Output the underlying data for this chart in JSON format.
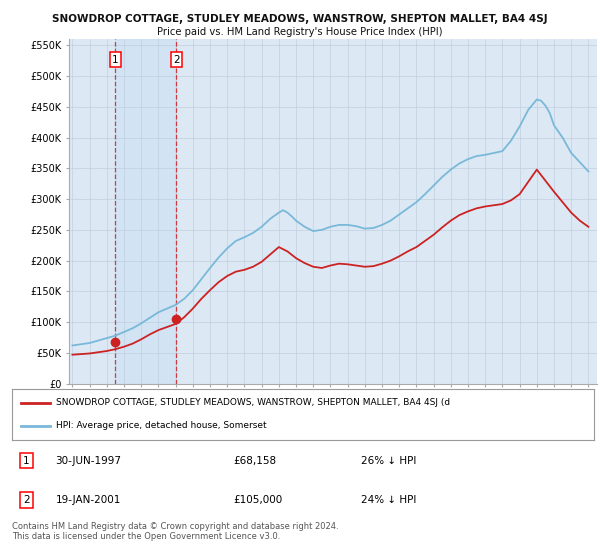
{
  "title": "SNOWDROP COTTAGE, STUDLEY MEADOWS, WANSTROW, SHEPTON MALLET, BA4 4SJ",
  "subtitle": "Price paid vs. HM Land Registry's House Price Index (HPI)",
  "legend_line1": "SNOWDROP COTTAGE, STUDLEY MEADOWS, WANSTROW, SHEPTON MALLET, BA4 4SJ (d",
  "legend_line2": "HPI: Average price, detached house, Somerset",
  "footer": "Contains HM Land Registry data © Crown copyright and database right 2024.\nThis data is licensed under the Open Government Licence v3.0.",
  "sale1_date": 1997.5,
  "sale1_price": 68158,
  "sale2_date": 2001.05,
  "sale2_price": 105000,
  "ylim": [
    0,
    560000
  ],
  "yticks": [
    0,
    50000,
    100000,
    150000,
    200000,
    250000,
    300000,
    350000,
    400000,
    450000,
    500000,
    550000
  ],
  "ytick_labels": [
    "£0",
    "£50K",
    "£100K",
    "£150K",
    "£200K",
    "£250K",
    "£300K",
    "£350K",
    "£400K",
    "£450K",
    "£500K",
    "£550K"
  ],
  "hpi_color": "#7ab8d9",
  "price_color": "#cc2222",
  "plot_bg": "#dce9f5",
  "grid_color": "#c0cfe0",
  "title_color": "#111111",
  "hpi_years": [
    1995,
    1995.5,
    1996,
    1996.5,
    1997,
    1997.5,
    1998,
    1998.5,
    1999,
    1999.5,
    2000,
    2000.5,
    2001,
    2001.5,
    2002,
    2002.5,
    2003,
    2003.5,
    2004,
    2004.5,
    2005,
    2005.5,
    2006,
    2006.5,
    2007,
    2007.25,
    2007.5,
    2007.75,
    2008,
    2008.5,
    2009,
    2009.5,
    2010,
    2010.5,
    2011,
    2011.5,
    2012,
    2012.5,
    2013,
    2013.5,
    2014,
    2014.5,
    2015,
    2015.5,
    2016,
    2016.5,
    2017,
    2017.5,
    2018,
    2018.5,
    2019,
    2019.5,
    2020,
    2020.5,
    2021,
    2021.5,
    2022,
    2022.25,
    2022.5,
    2022.75,
    2023,
    2023.5,
    2024,
    2024.5,
    2025
  ],
  "hpi_values": [
    62000,
    64000,
    66000,
    70000,
    74000,
    78000,
    84000,
    90000,
    98000,
    107000,
    116000,
    122000,
    128000,
    138000,
    152000,
    170000,
    188000,
    205000,
    220000,
    232000,
    238000,
    245000,
    255000,
    268000,
    278000,
    282000,
    278000,
    272000,
    265000,
    255000,
    248000,
    250000,
    255000,
    258000,
    258000,
    256000,
    252000,
    253000,
    258000,
    265000,
    275000,
    285000,
    295000,
    308000,
    322000,
    336000,
    348000,
    358000,
    365000,
    370000,
    372000,
    375000,
    378000,
    395000,
    418000,
    445000,
    462000,
    460000,
    452000,
    440000,
    420000,
    400000,
    375000,
    360000,
    345000
  ],
  "red_years": [
    1995,
    1995.5,
    1996,
    1996.5,
    1997,
    1997.5,
    1998,
    1998.5,
    1999,
    1999.5,
    2000,
    2000.5,
    2001,
    2001.5,
    2002,
    2002.5,
    2003,
    2003.5,
    2004,
    2004.5,
    2005,
    2005.5,
    2006,
    2006.5,
    2007,
    2007.5,
    2008,
    2008.5,
    2009,
    2009.5,
    2010,
    2010.5,
    2011,
    2011.5,
    2012,
    2012.5,
    2013,
    2013.5,
    2014,
    2014.5,
    2015,
    2015.5,
    2016,
    2016.5,
    2017,
    2017.5,
    2018,
    2018.5,
    2019,
    2019.5,
    2020,
    2020.5,
    2021,
    2021.5,
    2022,
    2022.5,
    2023,
    2023.5,
    2024,
    2024.5,
    2025
  ],
  "red_values": [
    47000,
    48000,
    49000,
    51000,
    53000,
    56000,
    60000,
    65000,
    72000,
    80000,
    87000,
    92000,
    97000,
    108000,
    122000,
    138000,
    152000,
    165000,
    175000,
    182000,
    185000,
    190000,
    198000,
    210000,
    222000,
    215000,
    204000,
    196000,
    190000,
    188000,
    192000,
    195000,
    194000,
    192000,
    190000,
    191000,
    195000,
    200000,
    207000,
    215000,
    222000,
    232000,
    242000,
    254000,
    265000,
    274000,
    280000,
    285000,
    288000,
    290000,
    292000,
    298000,
    308000,
    328000,
    348000,
    330000,
    312000,
    295000,
    278000,
    265000,
    255000
  ]
}
